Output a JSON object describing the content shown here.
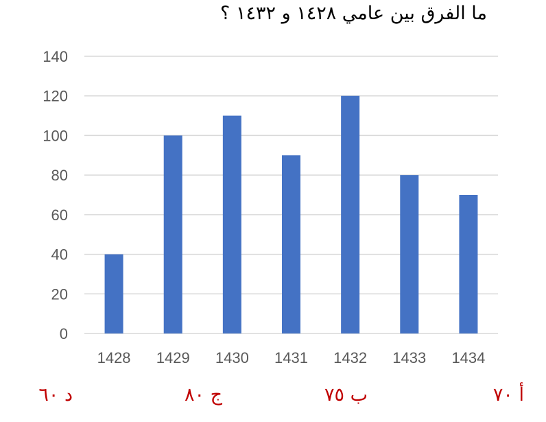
{
  "question": "ما الفرق بين عامي ١٤٢٨ و ١٤٣٢ ؟",
  "options": [
    {
      "label": "أ ٧٠"
    },
    {
      "label": "ب ٧٥"
    },
    {
      "label": "ج ٨٠"
    },
    {
      "label": "د ٦٠"
    }
  ],
  "colors": {
    "bar": "#4472c4",
    "gridline": "#d9d9d9",
    "axis_text": "#595959",
    "option_text": "#c00000"
  },
  "chart_data": {
    "type": "bar",
    "categories": [
      "1428",
      "1429",
      "1430",
      "1431",
      "1432",
      "1433",
      "1434"
    ],
    "series": [
      {
        "values": [
          40,
          100,
          110,
          90,
          120,
          80,
          70
        ]
      }
    ],
    "title": "",
    "xlabel": "",
    "ylabel": "",
    "ylim": [
      0,
      140
    ],
    "yticks": [
      0,
      20,
      40,
      60,
      80,
      100,
      120,
      140
    ],
    "grid": true,
    "legend": "none"
  }
}
